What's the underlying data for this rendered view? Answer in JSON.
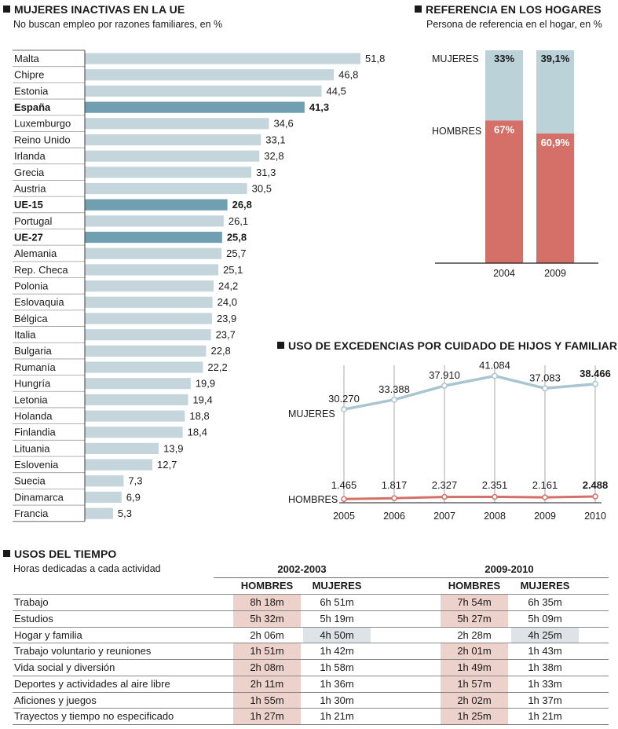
{
  "section1": {
    "title": "MUJERES INACTIVAS EN LA UE",
    "subtitle": "No buscan empleo por razones familiares, en %"
  },
  "section2": {
    "title": "REFERENCIA EN LOS HOGARES",
    "subtitle": "Persona de referencia en el hogar, en %"
  },
  "section3": {
    "title": "USO DE EXCEDENCIAS POR CUIDADO DE HIJOS Y FAMILIARES"
  },
  "section4": {
    "title": "USOS DEL TIEMPO",
    "subtitle": "Horas dedicadas a cada actividad",
    "period1": "2002-2003",
    "period2": "2009-2010",
    "col_men": "HOMBRES",
    "col_women": "MUJERES",
    "highlight_men_color": "#ecd2cb",
    "highlight_women_color": "#dde3e6",
    "rows": [
      {
        "activity": "Trabajo",
        "h1": "8h 18m",
        "m1": "6h 51m",
        "h2": "7h 54m",
        "m2": "6h 35m",
        "hl": "men"
      },
      {
        "activity": "Estudios",
        "h1": "5h 32m",
        "m1": "5h 19m",
        "h2": "5h 27m",
        "m2": "5h 09m",
        "hl": "men"
      },
      {
        "activity": "Hogar y familia",
        "h1": "2h 06m",
        "m1": "4h 50m",
        "h2": "2h 28m",
        "m2": "4h 25m",
        "hl": "women"
      },
      {
        "activity": "Trabajo voluntario y reuniones",
        "h1": "1h 51m",
        "m1": "1h 42m",
        "h2": "2h 01m",
        "m2": "1h 43m",
        "hl": "men"
      },
      {
        "activity": "Vida social y diversión",
        "h1": "2h 08m",
        "m1": "1h 58m",
        "h2": "1h 49m",
        "m2": "1h 38m",
        "hl": "men"
      },
      {
        "activity": "Deportes y actividades al aire libre",
        "h1": "2h 11m",
        "m1": "1h 36m",
        "h2": "1h 57m",
        "m2": "1h 33m",
        "hl": "men"
      },
      {
        "activity": "Aficiones y juegos",
        "h1": "1h 55m",
        "m1": "1h 30m",
        "h2": "2h 02m",
        "m2": "1h 37m",
        "hl": "men"
      },
      {
        "activity": "Trayectos y tiempo no especificado",
        "h1": "1h 27m",
        "m1": "1h 21m",
        "h2": "1h 25m",
        "m2": "1h 21m",
        "hl": "men"
      }
    ]
  },
  "chart_data": [
    {
      "type": "bar",
      "orientation": "horizontal",
      "title": "MUJERES INACTIVAS EN LA UE",
      "subtitle": "No buscan empleo por razones familiares, en %",
      "bar_color": "#c4d6dc",
      "highlight_color": "#6f9fb0",
      "items": [
        {
          "label": "Malta",
          "value": 51.8,
          "display": "51,8"
        },
        {
          "label": "Chipre",
          "value": 46.8,
          "display": "46,8"
        },
        {
          "label": "Estonia",
          "value": 44.5,
          "display": "44,5"
        },
        {
          "label": "España",
          "value": 41.3,
          "display": "41,3",
          "highlight": true
        },
        {
          "label": "Luxemburgo",
          "value": 34.6,
          "display": "34,6"
        },
        {
          "label": "Reino Unido",
          "value": 33.1,
          "display": "33,1"
        },
        {
          "label": "Irlanda",
          "value": 32.8,
          "display": "32,8"
        },
        {
          "label": "Grecia",
          "value": 31.3,
          "display": "31,3"
        },
        {
          "label": "Austria",
          "value": 30.5,
          "display": "30,5"
        },
        {
          "label": "UE-15",
          "value": 26.8,
          "display": "26,8",
          "highlight": true
        },
        {
          "label": "Portugal",
          "value": 26.1,
          "display": "26,1"
        },
        {
          "label": "UE-27",
          "value": 25.8,
          "display": "25,8",
          "highlight": true
        },
        {
          "label": "Alemania",
          "value": 25.7,
          "display": "25,7"
        },
        {
          "label": "Rep. Checa",
          "value": 25.1,
          "display": "25,1"
        },
        {
          "label": "Polonia",
          "value": 24.2,
          "display": "24,2"
        },
        {
          "label": "Eslovaquia",
          "value": 24.0,
          "display": "24,0"
        },
        {
          "label": "Bélgica",
          "value": 23.9,
          "display": "23,9"
        },
        {
          "label": "Italia",
          "value": 23.7,
          "display": "23,7"
        },
        {
          "label": "Bulgaria",
          "value": 22.8,
          "display": "22,8"
        },
        {
          "label": "Rumanía",
          "value": 22.2,
          "display": "22,2"
        },
        {
          "label": "Hungría",
          "value": 19.9,
          "display": "19,9"
        },
        {
          "label": "Letonia",
          "value": 19.4,
          "display": "19,4"
        },
        {
          "label": "Holanda",
          "value": 18.8,
          "display": "18,8"
        },
        {
          "label": "Finlandia",
          "value": 18.4,
          "display": "18,4"
        },
        {
          "label": "Lituania",
          "value": 13.9,
          "display": "13,9"
        },
        {
          "label": "Eslovenia",
          "value": 12.7,
          "display": "12,7"
        },
        {
          "label": "Suecia",
          "value": 7.3,
          "display": "7,3"
        },
        {
          "label": "Dinamarca",
          "value": 6.9,
          "display": "6,9"
        },
        {
          "label": "Francia",
          "value": 5.3,
          "display": "5,3"
        }
      ]
    },
    {
      "type": "bar",
      "stacked": true,
      "title": "REFERENCIA EN LOS HOGARES",
      "subtitle": "Persona de referencia en el hogar, en %",
      "categories": [
        "2004",
        "2009"
      ],
      "series": [
        {
          "name": "HOMBRES",
          "values": [
            67,
            60.9
          ],
          "labels": [
            "67%",
            "60,9%"
          ],
          "color": "#d47068"
        },
        {
          "name": "MUJERES",
          "values": [
            33,
            39.1
          ],
          "labels": [
            "33%",
            "39,1%"
          ],
          "color": "#bcd2d9"
        }
      ],
      "ylim": [
        0,
        100
      ]
    },
    {
      "type": "line",
      "title": "USO DE EXCEDENCIAS POR CUIDADO DE HIJOS Y FAMILIARES",
      "x": [
        "2005",
        "2006",
        "2007",
        "2008",
        "2009",
        "2010"
      ],
      "series": [
        {
          "name": "MUJERES",
          "values": [
            30270,
            33388,
            37910,
            41084,
            37083,
            38466
          ],
          "labels": [
            "30.270",
            "33.388",
            "37.910",
            "41.084",
            "37.083",
            "38.466"
          ],
          "color": "#a9c5cf"
        },
        {
          "name": "HOMBRES",
          "values": [
            1465,
            1817,
            2327,
            2351,
            2161,
            2488
          ],
          "labels": [
            "1.465",
            "1.817",
            "2.327",
            "2.351",
            "2.161",
            "2.488"
          ],
          "color": "#d47068"
        }
      ],
      "ylim": [
        0,
        42000
      ]
    }
  ]
}
